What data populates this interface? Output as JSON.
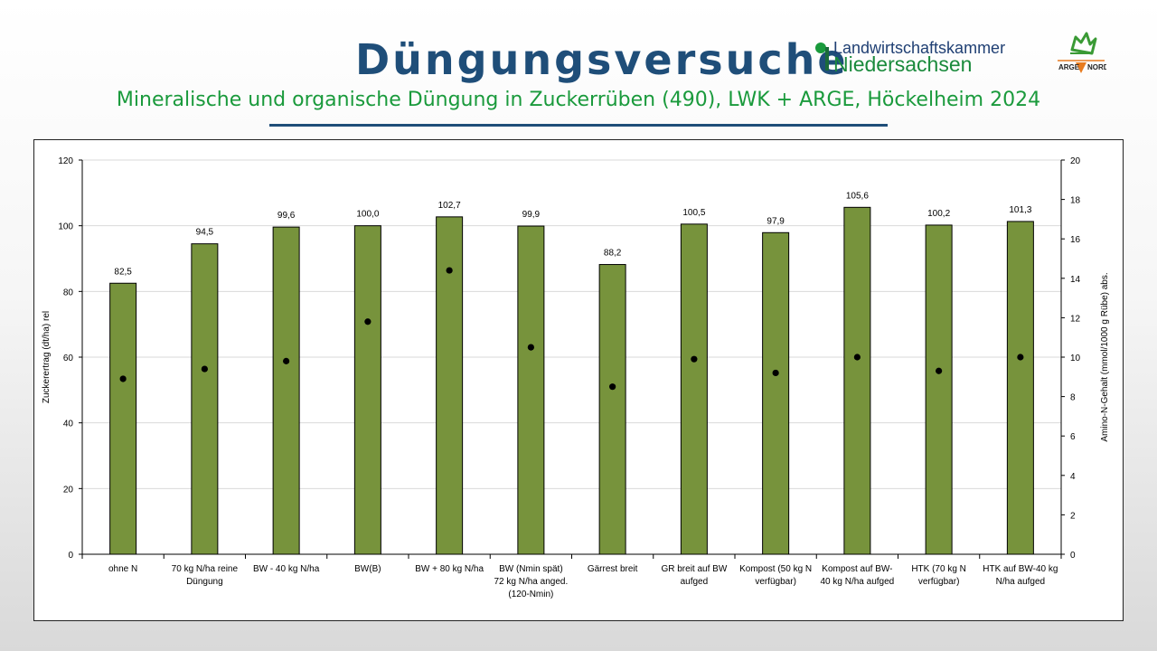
{
  "header": {
    "title": "Düngungsversuche",
    "subtitle": "Mineralische und organische Düngung in Zuckerrüben (490), LWK + ARGE, Höckelheim 2024"
  },
  "logos": {
    "lwk_line1": "Landwirtschaftskammer",
    "lwk_line2": "Niedersachsen",
    "arge_left": "ARGE",
    "arge_right": "NORD"
  },
  "colors": {
    "bar": "#77933c",
    "bar_edge": "#000000",
    "point": "#000000",
    "title": "#1f4e79",
    "subtitle": "#1a9a3c"
  },
  "chart_data": {
    "type": "bar",
    "categories": [
      [
        "ohne N"
      ],
      [
        "70 kg N/ha reine",
        "Düngung"
      ],
      [
        "BW - 40 kg N/ha"
      ],
      [
        "BW(B)"
      ],
      [
        "BW + 80 kg N/ha"
      ],
      [
        "BW (Nmin spät)",
        "72 kg N/ha anged.",
        "(120-Nmin)"
      ],
      [
        "Gärrest breit"
      ],
      [
        "GR breit auf BW",
        "aufged"
      ],
      [
        "Kompost (50 kg N",
        "verfügbar)"
      ],
      [
        "Kompost auf BW-",
        "40 kg N/ha aufged"
      ],
      [
        "HTK (70 kg N",
        "verfügbar)"
      ],
      [
        "HTK auf BW-40 kg",
        "N/ha aufged"
      ]
    ],
    "series": [
      {
        "type": "bar",
        "axis": "left",
        "values": [
          82.5,
          94.5,
          99.6,
          100.0,
          102.7,
          99.9,
          88.2,
          100.5,
          97.9,
          105.6,
          100.2,
          101.3
        ],
        "labels": [
          "82,5",
          "94,5",
          "99,6",
          "100,0",
          "102,7",
          "99,9",
          "88,2",
          "100,5",
          "97,9",
          "105,6",
          "100,2",
          "101,3"
        ]
      },
      {
        "type": "scatter",
        "axis": "right",
        "values": [
          8.9,
          9.4,
          9.8,
          11.8,
          14.4,
          10.5,
          8.5,
          9.9,
          9.2,
          10.0,
          9.3,
          10.0
        ]
      }
    ],
    "ylabel": "Zuckerertrag (dt/ha) rel",
    "y2label": "Amino-N-Gehalt (mmol/1000 g Rübe) abs.",
    "ylim": [
      0,
      120
    ],
    "yticks": [
      0,
      20,
      40,
      60,
      80,
      100,
      120
    ],
    "y2lim": [
      0,
      20
    ],
    "y2ticks": [
      0,
      2,
      4,
      6,
      8,
      10,
      12,
      14,
      16,
      18,
      20
    ],
    "grid": true,
    "legend": "none"
  }
}
